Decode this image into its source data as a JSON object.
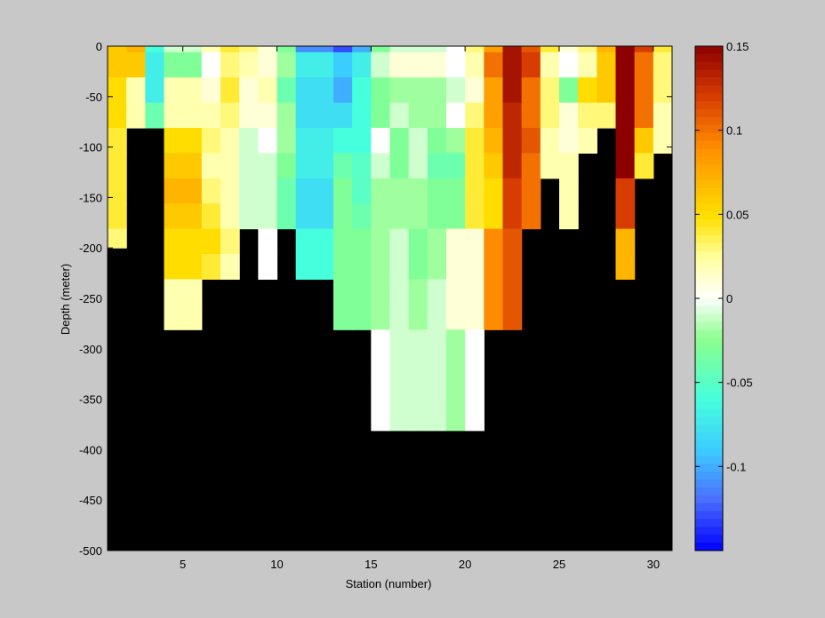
{
  "chart_data": {
    "type": "heatmap",
    "xlabel": "Station (number)",
    "ylabel": "Depth (meter)",
    "xlim": [
      1,
      31
    ],
    "ylim": [
      -500,
      0
    ],
    "x_ticks": [
      5,
      10,
      15,
      20,
      25,
      30
    ],
    "y_ticks": [
      0,
      -50,
      -100,
      -150,
      -200,
      -250,
      -300,
      -350,
      -400,
      -450,
      -500
    ],
    "depth_bin_edges": [
      0,
      -6,
      -31,
      -56,
      -81,
      -106,
      -131,
      -156,
      -181,
      -206,
      -231,
      -256,
      -281,
      -306,
      -331,
      -356,
      -381,
      -406
    ],
    "colorbar": {
      "min": -0.15,
      "max": 0.15,
      "tick_values": [
        0.15,
        0.1,
        0.05,
        0,
        -0.05,
        -0.1
      ],
      "tick_labels": [
        "0.15",
        "0.1",
        "0.05",
        "0",
        "-0.05",
        "-0.1"
      ]
    },
    "missing_color": "#000000",
    "columns": [
      {
        "station": 1,
        "bottom": -200,
        "values": [
          0.06,
          0.06,
          0.05,
          0.05,
          0.04,
          0.04,
          0.04,
          0.04,
          0.03
        ]
      },
      {
        "station": 2,
        "bottom": -100,
        "values": [
          0.07,
          0.06,
          0.02,
          0.02
        ]
      },
      {
        "station": 3,
        "bottom": -100,
        "values": [
          -0.06,
          -0.07,
          -0.07,
          -0.04
        ]
      },
      {
        "station": 4,
        "bottom": -300,
        "values": [
          -0.01,
          -0.03,
          0.02,
          0.02,
          0.05,
          0.06,
          0.07,
          0.06,
          0.05,
          0.05,
          0.02,
          0.02
        ]
      },
      {
        "station": 5,
        "bottom": -300,
        "values": [
          -0.01,
          -0.03,
          0.02,
          0.02,
          0.05,
          0.06,
          0.07,
          0.06,
          0.05,
          0.05,
          0.02,
          0.02
        ]
      },
      {
        "station": 6,
        "bottom": -250,
        "values": [
          0.02,
          0.0,
          0.01,
          0.02,
          0.03,
          0.02,
          0.03,
          0.04,
          0.05,
          0.04
        ]
      },
      {
        "station": 7,
        "bottom": -250,
        "values": [
          0.04,
          0.03,
          0.04,
          0.03,
          0.02,
          0.02,
          0.02,
          0.02,
          0.03,
          0.02
        ]
      },
      {
        "station": 8,
        "bottom": -200,
        "values": [
          0.03,
          0.02,
          0.01,
          0.01,
          -0.01,
          -0.01,
          -0.01,
          -0.01
        ]
      },
      {
        "station": 9,
        "bottom": -250,
        "values": [
          0.01,
          0.01,
          0.02,
          0.01,
          0.0,
          -0.01,
          -0.01,
          -0.01,
          0.0,
          0.0
        ]
      },
      {
        "station": 10,
        "bottom": -200,
        "values": [
          -0.03,
          -0.02,
          -0.04,
          -0.02,
          -0.02,
          -0.03,
          -0.04,
          -0.04
        ]
      },
      {
        "station": 11,
        "bottom": -250,
        "values": [
          -0.11,
          -0.07,
          -0.08,
          -0.08,
          -0.07,
          -0.07,
          -0.08,
          -0.08,
          -0.06,
          -0.06
        ]
      },
      {
        "station": 12,
        "bottom": -250,
        "values": [
          -0.11,
          -0.07,
          -0.08,
          -0.08,
          -0.07,
          -0.07,
          -0.08,
          -0.08,
          -0.06,
          -0.06
        ]
      },
      {
        "station": 13,
        "bottom": -300,
        "values": [
          -0.13,
          -0.09,
          -0.1,
          -0.08,
          -0.06,
          -0.04,
          -0.03,
          -0.03,
          -0.03,
          -0.03,
          -0.03,
          -0.03
        ]
      },
      {
        "station": 14,
        "bottom": -300,
        "values": [
          -0.1,
          -0.07,
          -0.06,
          -0.06,
          -0.06,
          -0.05,
          -0.05,
          -0.04,
          -0.03,
          -0.03,
          -0.03,
          -0.03
        ]
      },
      {
        "station": 15,
        "bottom": -400,
        "values": [
          -0.03,
          -0.01,
          -0.03,
          -0.03,
          0.0,
          -0.01,
          -0.02,
          -0.02,
          -0.02,
          -0.02,
          -0.02,
          -0.02,
          0.0,
          0.0,
          0.0,
          0.0
        ]
      },
      {
        "station": 16,
        "bottom": -400,
        "values": [
          -0.01,
          0.01,
          -0.02,
          -0.01,
          -0.03,
          -0.03,
          -0.02,
          -0.02,
          -0.01,
          -0.01,
          -0.01,
          -0.01,
          -0.01,
          -0.01,
          -0.01,
          -0.01
        ]
      },
      {
        "station": 17,
        "bottom": -400,
        "values": [
          -0.01,
          0.01,
          -0.02,
          -0.02,
          -0.01,
          -0.01,
          -0.02,
          -0.02,
          -0.03,
          -0.03,
          -0.02,
          -0.02,
          -0.01,
          -0.01,
          -0.01,
          -0.01
        ]
      },
      {
        "station": 18,
        "bottom": -400,
        "values": [
          -0.01,
          0.01,
          -0.02,
          -0.02,
          -0.03,
          -0.04,
          -0.03,
          -0.03,
          -0.02,
          -0.02,
          -0.01,
          -0.01,
          -0.01,
          -0.01,
          -0.01,
          -0.01
        ]
      },
      {
        "station": 19,
        "bottom": -400,
        "values": [
          0.0,
          0.0,
          -0.01,
          0.0,
          -0.02,
          -0.04,
          -0.03,
          -0.03,
          0.01,
          0.01,
          0.01,
          0.01,
          -0.02,
          -0.02,
          -0.02,
          -0.02
        ]
      },
      {
        "station": 20,
        "bottom": -400,
        "values": [
          0.03,
          0.02,
          0.01,
          0.03,
          0.04,
          0.04,
          0.04,
          0.04,
          0.01,
          0.01,
          0.01,
          0.01,
          0.0,
          0.0,
          0.0,
          0.0
        ]
      },
      {
        "station": 21,
        "bottom": -300,
        "values": [
          0.08,
          0.1,
          0.08,
          0.08,
          0.07,
          0.06,
          0.05,
          0.05,
          0.09,
          0.09,
          0.09,
          0.09
        ]
      },
      {
        "station": 22,
        "bottom": -300,
        "values": [
          0.14,
          0.14,
          0.14,
          0.13,
          0.13,
          0.13,
          0.12,
          0.12,
          0.11,
          0.11,
          0.11,
          0.11
        ]
      },
      {
        "station": 23,
        "bottom": -200,
        "values": [
          0.11,
          0.12,
          0.1,
          0.1,
          0.11,
          0.1,
          0.1,
          0.1
        ]
      },
      {
        "station": 24,
        "bottom": -150,
        "values": [
          0.04,
          0.02,
          0.03,
          0.03,
          0.02,
          0.02
        ]
      },
      {
        "station": 25,
        "bottom": -200,
        "values": [
          0.01,
          0.0,
          -0.03,
          0.01,
          0.01,
          0.02,
          0.02,
          0.02
        ]
      },
      {
        "station": 26,
        "bottom": -125,
        "values": [
          0.03,
          0.02,
          0.05,
          0.03,
          0.02
        ]
      },
      {
        "station": 27,
        "bottom": -100,
        "values": [
          0.07,
          0.06,
          0.06,
          0.03
        ]
      },
      {
        "station": 28,
        "bottom": -250,
        "values": [
          0.15,
          0.15,
          0.15,
          0.15,
          0.15,
          0.15,
          0.12,
          0.12,
          0.07,
          0.07
        ]
      },
      {
        "station": 29,
        "bottom": -150,
        "values": [
          0.12,
          0.1,
          0.1,
          0.1,
          0.06,
          0.04
        ]
      },
      {
        "station": 30,
        "bottom": -125,
        "values": [
          0.04,
          0.03,
          0.03,
          0.02,
          0.02
        ]
      }
    ]
  }
}
